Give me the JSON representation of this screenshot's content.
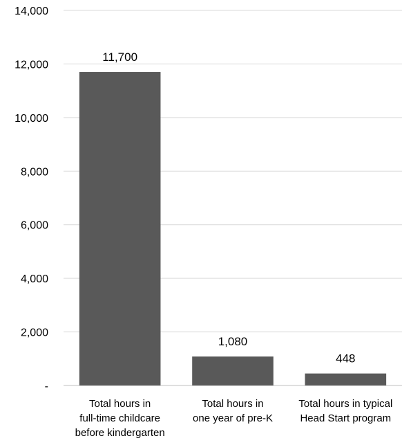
{
  "chart_data": {
    "type": "bar",
    "title": "",
    "xlabel": "",
    "ylabel": "",
    "categories": [
      [
        "Total hours in",
        "full-time childcare",
        "before kindergarten"
      ],
      [
        "Total hours in",
        "one year of pre-K"
      ],
      [
        "Total hours in typical",
        "Head Start program"
      ]
    ],
    "values": [
      11700,
      1080,
      448
    ],
    "data_labels": [
      "11,700",
      "1,080",
      "448"
    ],
    "ylim": [
      0,
      14000
    ],
    "yticks": [
      0,
      2000,
      4000,
      6000,
      8000,
      10000,
      12000,
      14000
    ],
    "ytick_labels": [
      "-",
      "2,000",
      "4,000",
      "6,000",
      "8,000",
      "10,000",
      "12,000",
      "14,000"
    ],
    "grid": true,
    "legend": "none",
    "colors": {
      "bar": "#595959",
      "grid": "#d9d9d9",
      "axis": "#bfbfbf",
      "text": "#000000"
    }
  }
}
